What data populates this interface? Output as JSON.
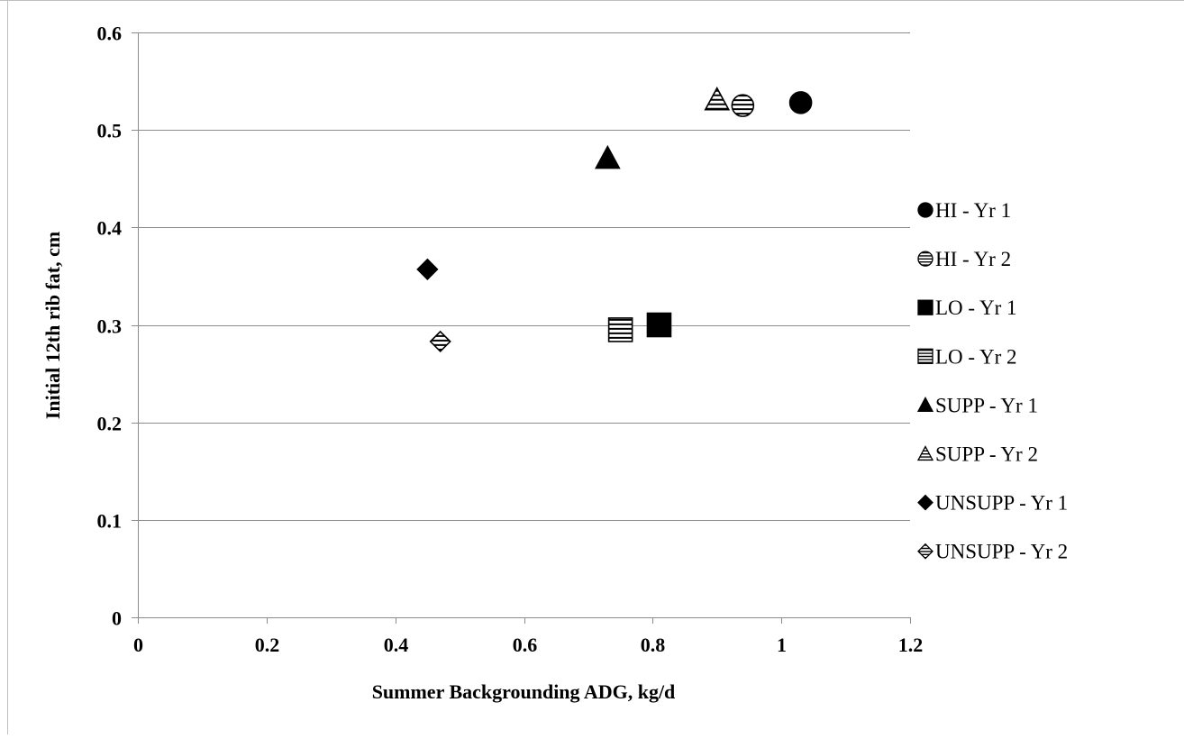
{
  "chart_data": {
    "type": "scatter",
    "title": "",
    "xlabel": "Summer Backgrounding ADG, kg/d",
    "ylabel": "Initial 12th rib fat, cm",
    "xlim": [
      0,
      1.2
    ],
    "ylim": [
      0,
      0.6
    ],
    "x_ticks": [
      0,
      0.2,
      0.4,
      0.6,
      0.8,
      1,
      1.2
    ],
    "y_ticks": [
      0,
      0.1,
      0.2,
      0.3,
      0.4,
      0.5,
      0.6
    ],
    "x_tick_labels": [
      "0",
      "0.2",
      "0.4",
      "0.6",
      "0.8",
      "1",
      "1.2"
    ],
    "y_tick_labels": [
      "0",
      "0.1",
      "0.2",
      "0.3",
      "0.4",
      "0.5",
      "0.6"
    ],
    "grid": "horizontal",
    "legend_position": "right",
    "series": [
      {
        "name": "HI - Yr 1",
        "marker": "circle",
        "fill": "solid",
        "x": [
          1.03
        ],
        "y": [
          0.528
        ]
      },
      {
        "name": "HI - Yr 2",
        "marker": "circle",
        "fill": "striped",
        "x": [
          0.94
        ],
        "y": [
          0.525
        ]
      },
      {
        "name": "LO - Yr 1",
        "marker": "square",
        "fill": "solid",
        "x": [
          0.81
        ],
        "y": [
          0.3
        ]
      },
      {
        "name": "LO - Yr 2",
        "marker": "square",
        "fill": "striped",
        "x": [
          0.75
        ],
        "y": [
          0.295
        ]
      },
      {
        "name": "SUPP - Yr 1",
        "marker": "triangle",
        "fill": "solid",
        "x": [
          0.73
        ],
        "y": [
          0.47
        ]
      },
      {
        "name": "SUPP - Yr 2",
        "marker": "triangle",
        "fill": "striped",
        "x": [
          0.9
        ],
        "y": [
          0.53
        ]
      },
      {
        "name": "UNSUPP - Yr 1",
        "marker": "diamond",
        "fill": "solid",
        "x": [
          0.45
        ],
        "y": [
          0.357
        ]
      },
      {
        "name": "UNSUPP - Yr 2",
        "marker": "diamond",
        "fill": "striped",
        "x": [
          0.47
        ],
        "y": [
          0.283
        ]
      }
    ],
    "colors": {
      "marker": "#000000",
      "gridline": "#8c8c8c",
      "axis": "#8c8c8c",
      "frame": "#bfbfbf"
    }
  }
}
